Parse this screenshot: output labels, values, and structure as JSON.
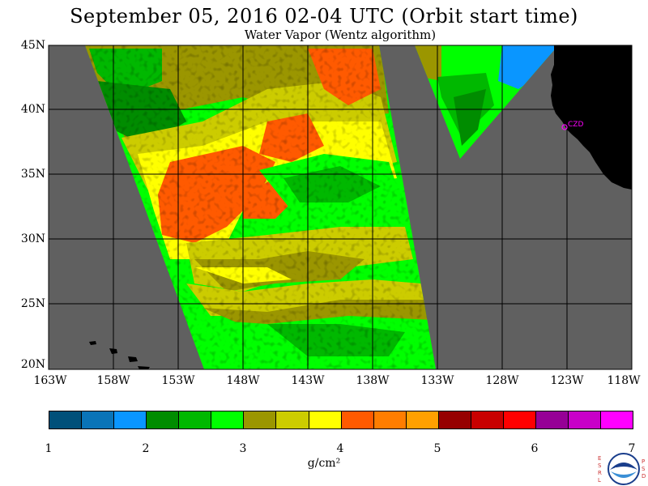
{
  "title": "September 05, 2016  02-04 UTC  (Orbit start time)",
  "subtitle": "Water Vapor (Wentz algorithm)",
  "lat_labels": [
    "45N",
    "40N",
    "35N",
    "30N",
    "25N",
    "20N"
  ],
  "lon_labels": [
    "163W",
    "158W",
    "153W",
    "148W",
    "143W",
    "138W",
    "133W",
    "128W",
    "123W",
    "118W"
  ],
  "station_label": "CZD",
  "colorbar": {
    "colors": [
      "#00507a",
      "#0a74b8",
      "#0a96ff",
      "#008c00",
      "#00b800",
      "#00ff00",
      "#9b9600",
      "#cccc00",
      "#ffff00",
      "#ff5a00",
      "#ff7d00",
      "#ffa000",
      "#960000",
      "#c80000",
      "#ff0000",
      "#960096",
      "#c800c8",
      "#ff00ff"
    ],
    "tick_labels": [
      "1",
      "2",
      "3",
      "4",
      "5",
      "6",
      "7"
    ],
    "units_label": "g/cm²"
  },
  "logo": {
    "left_letters": "ESRL",
    "right_letters": "PSD",
    "center_text": "NOAA"
  },
  "map_colors": {
    "land": "#000000",
    "no_data": "#606060",
    "grid": "#000000",
    "station": "#ff00ff"
  }
}
